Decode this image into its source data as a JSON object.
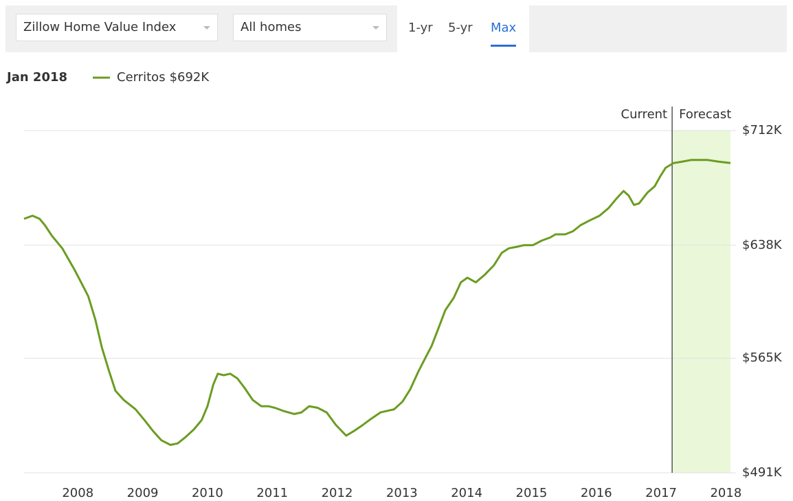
{
  "controls": {
    "metric": "Zillow Home Value Index",
    "home_type": "All homes",
    "ranges": [
      "1-yr",
      "5-yr",
      "Max"
    ],
    "selected_range": "Max"
  },
  "chart_data": {
    "type": "line",
    "header_date": "Jan 2018",
    "annotations": {
      "current": "Current",
      "forecast": "Forecast",
      "forecast_start": 2017.17
    },
    "legend_value_label": "$692K",
    "x": [
      2007.17,
      2007.3,
      2007.41,
      2007.49,
      2007.6,
      2007.76,
      2007.95,
      2008.05,
      2008.16,
      2008.27,
      2008.37,
      2008.48,
      2008.58,
      2008.71,
      2008.89,
      2009.03,
      2009.16,
      2009.29,
      2009.43,
      2009.54,
      2009.66,
      2009.79,
      2009.91,
      2010.0,
      2010.09,
      2010.16,
      2010.25,
      2010.35,
      2010.46,
      2010.57,
      2010.7,
      2010.83,
      2010.94,
      2011.04,
      2011.17,
      2011.34,
      2011.45,
      2011.57,
      2011.7,
      2011.84,
      2011.98,
      2012.14,
      2012.26,
      2012.4,
      2012.53,
      2012.67,
      2012.77,
      2012.88,
      2013.01,
      2013.13,
      2013.25,
      2013.36,
      2013.46,
      2013.57,
      2013.67,
      2013.8,
      2013.91,
      2014.01,
      2014.14,
      2014.28,
      2014.42,
      2014.54,
      2014.65,
      2014.78,
      2014.88,
      2015.02,
      2015.16,
      2015.29,
      2015.37,
      2015.52,
      2015.64,
      2015.76,
      2015.9,
      2016.05,
      2016.19,
      2016.31,
      2016.42,
      2016.5,
      2016.58,
      2016.66,
      2016.79,
      2016.9,
      2016.98,
      2017.07,
      2017.19,
      2017.33,
      2017.46,
      2017.72,
      2017.88,
      2018.07
    ],
    "series": [
      {
        "name": "Cerritos",
        "color": "#6b9c21",
        "values": [
          655,
          657,
          655,
          651,
          644,
          636,
          622,
          614,
          605,
          590,
          572,
          557,
          544,
          538,
          532,
          525,
          518,
          512,
          509,
          510,
          514,
          519,
          525,
          534,
          548,
          555,
          554,
          555,
          552,
          546,
          538,
          534,
          534,
          533,
          531,
          529,
          530,
          534,
          533,
          530,
          522,
          515,
          518,
          522,
          526,
          530,
          531,
          532,
          537,
          545,
          556,
          565,
          573,
          585,
          596,
          604,
          614,
          617,
          614,
          619,
          625,
          633,
          636,
          637,
          638,
          638,
          641,
          643,
          645,
          645,
          647,
          651,
          654,
          657,
          662,
          668,
          673,
          670,
          664,
          665,
          672,
          676,
          682,
          688,
          691,
          692,
          693,
          693,
          692,
          691
        ]
      }
    ],
    "xlim": [
      2007.17,
      2018.07
    ],
    "xticks": [
      2008,
      2009,
      2010,
      2011,
      2012,
      2013,
      2014,
      2015,
      2016,
      2017,
      2018
    ],
    "ylim": [
      491,
      712
    ],
    "yticks": [
      {
        "value": 491,
        "label": "$491K"
      },
      {
        "value": 565,
        "label": "$565K"
      },
      {
        "value": 638,
        "label": "$638K"
      },
      {
        "value": 712,
        "label": "$712K"
      }
    ],
    "grid": true,
    "forecast_color": "#eaf7d9"
  }
}
